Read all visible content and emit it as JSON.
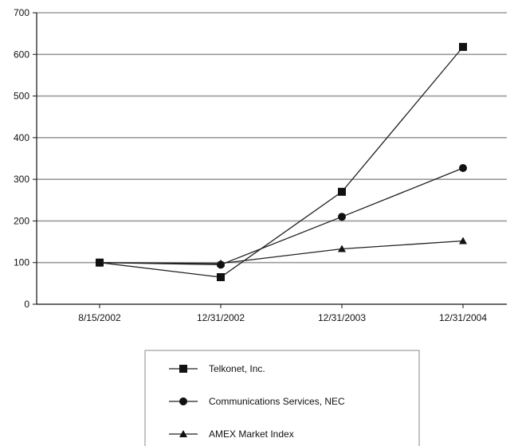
{
  "chart_data": {
    "type": "line",
    "title": "",
    "xlabel": "",
    "ylabel": "",
    "categories": [
      "8/15/2002",
      "12/31/2002",
      "12/31/2003",
      "12/31/2004"
    ],
    "ylim": [
      0,
      700
    ],
    "yticks": [
      0,
      100,
      200,
      300,
      400,
      500,
      600,
      700
    ],
    "grid": "horizontal",
    "legend_position": "bottom",
    "series": [
      {
        "name": "Telkonet, Inc.",
        "marker": "square",
        "values": [
          100,
          65,
          270,
          618
        ]
      },
      {
        "name": "Communications Services, NEC",
        "marker": "circle",
        "values": [
          100,
          95,
          210,
          327
        ]
      },
      {
        "name": "AMEX Market Index",
        "marker": "triangle",
        "values": [
          100,
          98,
          133,
          152
        ]
      }
    ],
    "colors": {
      "line": "#222222",
      "grid": "#9a9a9a",
      "axis": "#111111"
    }
  }
}
